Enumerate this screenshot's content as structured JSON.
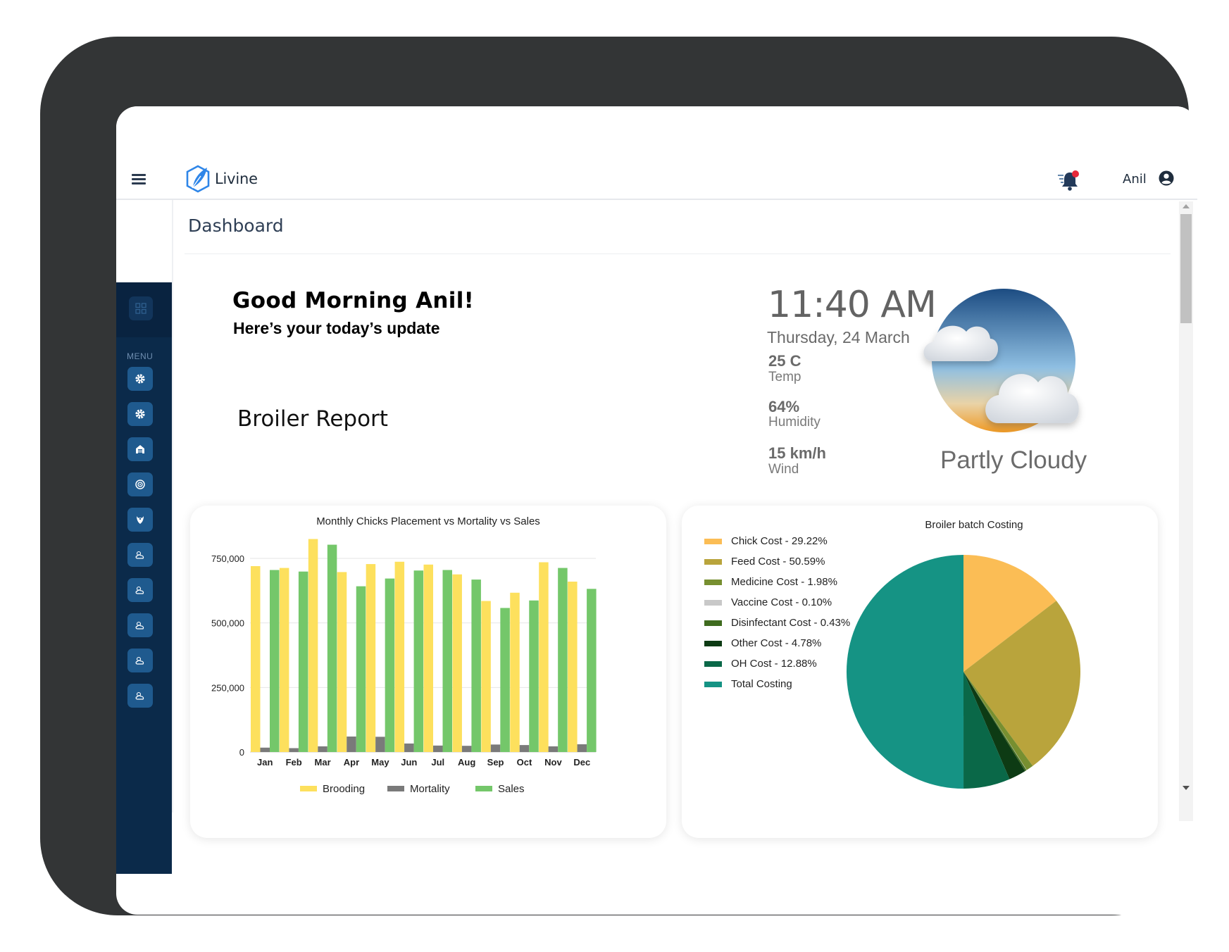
{
  "app": {
    "brand": "Livine"
  },
  "user": {
    "name": "Anil"
  },
  "sidebar": {
    "menu_label": "MENU"
  },
  "page": {
    "title": "Dashboard"
  },
  "greeting": {
    "title": "Good Morning Anil!",
    "subtitle": "Here’s your today’s update"
  },
  "report": {
    "title": "Broiler Report"
  },
  "weather": {
    "time": "11:40 AM",
    "date": "Thursday, 24 March",
    "temp_value": "25 C",
    "temp_label": "Temp",
    "humidity_value": "64%",
    "humidity_label": "Humidity",
    "wind_value": "15 km/h",
    "wind_label": "Wind",
    "condition": "Partly Cloudy"
  },
  "colors": {
    "sidebar": "#0b2a4a",
    "brooding": "#fde05d",
    "mortality": "#7a7a7a",
    "sales": "#74c76a"
  },
  "chart_data": [
    {
      "type": "bar",
      "title": "Monthly Chicks Placement vs Mortality vs Sales",
      "categories": [
        "Jan",
        "Feb",
        "Mar",
        "Apr",
        "May",
        "Jun",
        "Jul",
        "Aug",
        "Sep",
        "Oct",
        "Nov",
        "Dec"
      ],
      "series": [
        {
          "name": "Brooding",
          "color": "#fde05d",
          "values": [
            720000,
            713000,
            825000,
            697000,
            728000,
            737000,
            726000,
            688000,
            585000,
            617000,
            735000,
            660000
          ]
        },
        {
          "name": "Mortality",
          "color": "#7a7a7a",
          "values": [
            17000,
            15000,
            22000,
            60000,
            59000,
            33000,
            25000,
            24000,
            29000,
            27000,
            22000,
            30000
          ]
        },
        {
          "name": "Sales",
          "color": "#74c76a",
          "values": [
            705000,
            699000,
            803000,
            642000,
            672000,
            703000,
            705000,
            668000,
            558000,
            587000,
            713000,
            632000
          ]
        }
      ],
      "yticks": [
        "0",
        "250,000",
        "500,000",
        "750,000"
      ],
      "ylim": [
        0,
        820000
      ],
      "grid": true,
      "legend_position": "bottom"
    },
    {
      "type": "pie",
      "title": "Broiler batch Costing",
      "legend_position": "left",
      "slices": [
        {
          "label": "Chick Cost - 29.22%",
          "value": 29.22,
          "color": "#fbbd55"
        },
        {
          "label": "Feed Cost - 50.59%",
          "value": 50.59,
          "color": "#b9a43c"
        },
        {
          "label": "Medicine Cost - 1.98%",
          "value": 1.98,
          "color": "#778f30"
        },
        {
          "label": "Vaccine Cost - 0.10%",
          "value": 0.1,
          "color": "#c8c8c8"
        },
        {
          "label": "Disinfectant Cost - 0.43%",
          "value": 0.43,
          "color": "#3f6b1f"
        },
        {
          "label": "Other Cost - 4.78%",
          "value": 4.78,
          "color": "#0d3b14"
        },
        {
          "label": "OH Cost - 12.88%",
          "value": 12.88,
          "color": "#0a6848"
        },
        {
          "label": "Total Costing",
          "value": 100,
          "color": "#159384"
        }
      ]
    }
  ]
}
